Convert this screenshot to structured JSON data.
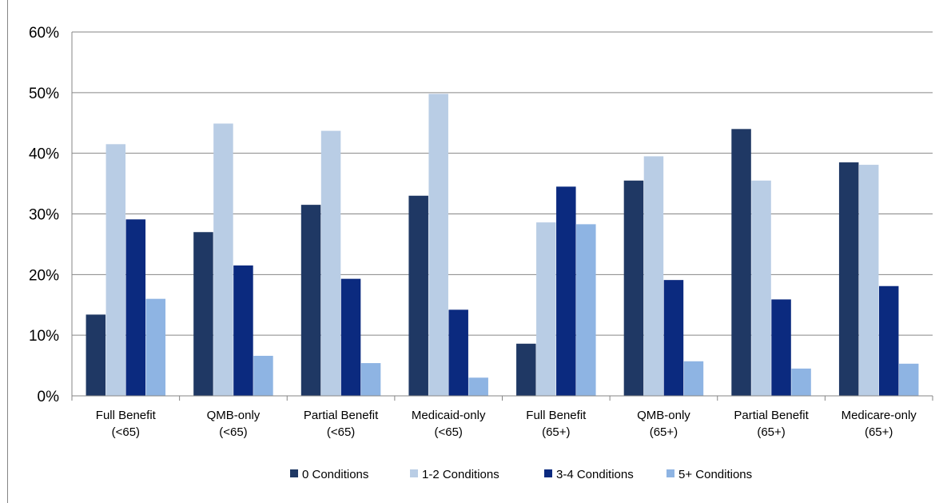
{
  "title_fragment": "",
  "chart_data": {
    "type": "bar",
    "title": "",
    "xlabel": "",
    "ylabel": "",
    "ylim": [
      0,
      0.6
    ],
    "yticks": [
      "0%",
      "10%",
      "20%",
      "30%",
      "40%",
      "50%",
      "60%"
    ],
    "grid": true,
    "legend_position": "bottom",
    "categories": [
      [
        "Full Benefit",
        "(<65)"
      ],
      [
        "QMB-only",
        "(<65)"
      ],
      [
        "Partial Benefit",
        "(<65)"
      ],
      [
        "Medicaid-only",
        "(<65)"
      ],
      [
        "Full Benefit",
        "(65+)"
      ],
      [
        "QMB-only",
        "(65+)"
      ],
      [
        "Partial Benefit",
        "(65+)"
      ],
      [
        "Medicare-only",
        "(65+)"
      ]
    ],
    "series": [
      {
        "name": "0 Conditions",
        "color": "#1f3864",
        "values": [
          0.134,
          0.27,
          0.315,
          0.33,
          0.086,
          0.355,
          0.44,
          0.385
        ]
      },
      {
        "name": "1-2 Conditions",
        "color": "#b9cde5",
        "values": [
          0.415,
          0.449,
          0.437,
          0.498,
          0.286,
          0.395,
          0.355,
          0.381
        ]
      },
      {
        "name": "3-4 Conditions",
        "color": "#0b2a7f",
        "values": [
          0.291,
          0.215,
          0.193,
          0.142,
          0.345,
          0.191,
          0.159,
          0.181
        ]
      },
      {
        "name": "5+ Conditions",
        "color": "#8eb4e3",
        "values": [
          0.16,
          0.066,
          0.054,
          0.03,
          0.283,
          0.057,
          0.045,
          0.053
        ]
      }
    ]
  }
}
